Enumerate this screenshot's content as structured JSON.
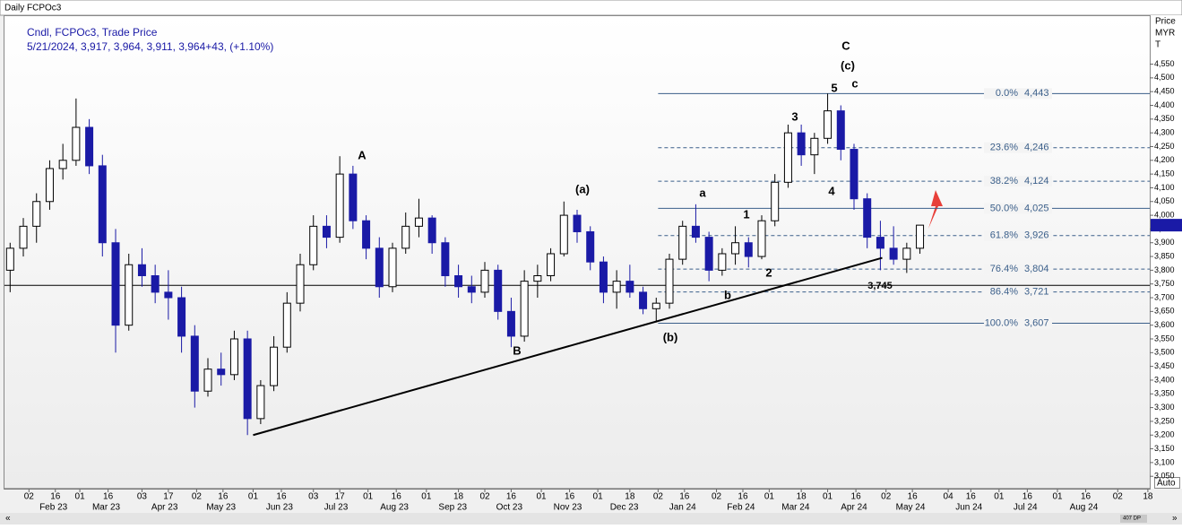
{
  "window_title": "Daily FCPOc3",
  "chart_data": {
    "type": "candlestick",
    "legend_lines": [
      "Cndl, FCPOc3, Trade Price",
      "5/21/2024, 3,917, 3,964, 3,911, 3,964+43, (+1.10%)"
    ],
    "y_axis_label": [
      "Price",
      "MYR",
      "T"
    ],
    "up_color": "#000000",
    "down_color": "#1a1aa6",
    "x": [
      "2023-01-23",
      "2023-01-30",
      "2023-02-06",
      "2023-02-13",
      "2023-02-20",
      "2023-02-27",
      "2023-03-06",
      "2023-03-13",
      "2023-03-20",
      "2023-03-27",
      "2023-04-03",
      "2023-04-10",
      "2023-04-17",
      "2023-04-24",
      "2023-05-01",
      "2023-05-08",
      "2023-05-15",
      "2023-05-22",
      "2023-05-29",
      "2023-06-05",
      "2023-06-12",
      "2023-06-19",
      "2023-06-26",
      "2023-07-03",
      "2023-07-10",
      "2023-07-17",
      "2023-07-24",
      "2023-07-31",
      "2023-08-07",
      "2023-08-14",
      "2023-08-21",
      "2023-08-28",
      "2023-09-04",
      "2023-09-11",
      "2023-09-18",
      "2023-09-25",
      "2023-10-02",
      "2023-10-09",
      "2023-10-16",
      "2023-10-23",
      "2023-10-30",
      "2023-11-06",
      "2023-11-13",
      "2023-11-20",
      "2023-11-27",
      "2023-12-04",
      "2023-12-11",
      "2023-12-18",
      "2023-12-25",
      "2024-01-01",
      "2024-01-08",
      "2024-01-15",
      "2024-01-22",
      "2024-01-29",
      "2024-02-05",
      "2024-02-12",
      "2024-02-19",
      "2024-02-26",
      "2024-03-04",
      "2024-03-11",
      "2024-03-18",
      "2024-03-25",
      "2024-04-01",
      "2024-04-08",
      "2024-04-15",
      "2024-04-22",
      "2024-04-29",
      "2024-05-06",
      "2024-05-13",
      "2024-05-20"
    ],
    "open": [
      3800,
      3880,
      3960,
      4050,
      4170,
      4200,
      4320,
      4180,
      3900,
      3600,
      3820,
      3780,
      3720,
      3700,
      3560,
      3360,
      3440,
      3420,
      3550,
      3260,
      3380,
      3520,
      3680,
      3820,
      3960,
      3920,
      4150,
      3980,
      3880,
      3740,
      3880,
      3960,
      3990,
      3900,
      3780,
      3740,
      3720,
      3800,
      3650,
      3560,
      3760,
      3780,
      3860,
      4000,
      3940,
      3830,
      3720,
      3760,
      3720,
      3660,
      3680,
      3840,
      3960,
      3920,
      3800,
      3860,
      3900,
      3850,
      3980,
      4120,
      4300,
      4220,
      4280,
      4380,
      4240,
      4060,
      3920,
      3880,
      3840,
      3880
    ],
    "high": [
      3900,
      3990,
      4080,
      4200,
      4260,
      4425,
      4350,
      4220,
      3950,
      3860,
      3880,
      3820,
      3800,
      3740,
      3600,
      3480,
      3500,
      3580,
      3580,
      3400,
      3560,
      3720,
      3860,
      4000,
      4000,
      4215,
      4180,
      4000,
      3920,
      3900,
      4010,
      4060,
      4000,
      3920,
      3820,
      3780,
      3830,
      3820,
      3700,
      3800,
      3820,
      3880,
      4050,
      4020,
      3960,
      3850,
      3800,
      3820,
      3740,
      3700,
      3860,
      3980,
      4040,
      3940,
      3880,
      3960,
      3920,
      4000,
      4150,
      4330,
      4330,
      4300,
      4443,
      4400,
      4260,
      4080,
      3980,
      3960,
      3900,
      3964
    ],
    "low": [
      3720,
      3850,
      3900,
      4020,
      4130,
      4180,
      4150,
      3850,
      3500,
      3580,
      3740,
      3680,
      3620,
      3500,
      3300,
      3340,
      3380,
      3400,
      3200,
      3240,
      3360,
      3500,
      3650,
      3800,
      3880,
      3900,
      3950,
      3840,
      3700,
      3720,
      3860,
      3920,
      3860,
      3740,
      3700,
      3680,
      3700,
      3620,
      3520,
      3540,
      3700,
      3760,
      3850,
      3900,
      3800,
      3680,
      3660,
      3700,
      3640,
      3610,
      3660,
      3820,
      3900,
      3760,
      3780,
      3820,
      3810,
      3840,
      3960,
      4100,
      4180,
      4150,
      4260,
      4200,
      4020,
      3880,
      3800,
      3820,
      3790,
      3860
    ],
    "close": [
      3880,
      3960,
      4050,
      4170,
      4200,
      4320,
      4180,
      3900,
      3600,
      3820,
      3780,
      3720,
      3700,
      3560,
      3360,
      3440,
      3420,
      3550,
      3260,
      3380,
      3520,
      3680,
      3820,
      3960,
      3920,
      4150,
      3980,
      3880,
      3740,
      3880,
      3960,
      3990,
      3900,
      3780,
      3740,
      3720,
      3800,
      3650,
      3560,
      3760,
      3780,
      3860,
      4000,
      3940,
      3830,
      3720,
      3760,
      3720,
      3660,
      3680,
      3840,
      3960,
      3920,
      3800,
      3860,
      3900,
      3850,
      3980,
      4120,
      4300,
      4220,
      4280,
      4380,
      4240,
      4060,
      3920,
      3880,
      3840,
      3880,
      3964
    ],
    "xlim": [
      "2023-01-20",
      "2024-09-19"
    ],
    "ylim": [
      3005,
      4728
    ],
    "yticks": [
      {
        "value": 3050,
        "label": "3,050"
      },
      {
        "value": 3100,
        "label": "3,100"
      },
      {
        "value": 3150,
        "label": "3,150"
      },
      {
        "value": 3200,
        "label": "3,200"
      },
      {
        "value": 3250,
        "label": "3,250"
      },
      {
        "value": 3300,
        "label": "3,300"
      },
      {
        "value": 3350,
        "label": "3,350"
      },
      {
        "value": 3400,
        "label": "3,400"
      },
      {
        "value": 3450,
        "label": "3,450"
      },
      {
        "value": 3500,
        "label": "3,500"
      },
      {
        "value": 3550,
        "label": "3,550"
      },
      {
        "value": 3600,
        "label": "3,600"
      },
      {
        "value": 3650,
        "label": "3,650"
      },
      {
        "value": 3700,
        "label": "3,700"
      },
      {
        "value": 3750,
        "label": "3,750"
      },
      {
        "value": 3800,
        "label": "3,800"
      },
      {
        "value": 3850,
        "label": "3,850"
      },
      {
        "value": 3900,
        "label": "3,900"
      },
      {
        "value": 3950,
        "label": "3,950"
      },
      {
        "value": 4000,
        "label": "4,000"
      },
      {
        "value": 4050,
        "label": "4,050"
      },
      {
        "value": 4100,
        "label": "4,100"
      },
      {
        "value": 4150,
        "label": "4,150"
      },
      {
        "value": 4200,
        "label": "4,200"
      },
      {
        "value": 4250,
        "label": "4,250"
      },
      {
        "value": 4300,
        "label": "4,300"
      },
      {
        "value": 4350,
        "label": "4,350"
      },
      {
        "value": 4400,
        "label": "4,400"
      },
      {
        "value": 4450,
        "label": "4,450"
      },
      {
        "value": 4500,
        "label": "4,500"
      },
      {
        "value": 4550,
        "label": "4,550"
      }
    ],
    "xticks": [
      {
        "value": "2023-02-02",
        "label": "02"
      },
      {
        "value": "2023-02-16",
        "label": "16"
      },
      {
        "value": "2023-03-01",
        "label": "01"
      },
      {
        "value": "2023-03-16",
        "label": "16"
      },
      {
        "value": "2023-04-03",
        "label": "03"
      },
      {
        "value": "2023-04-17",
        "label": "17"
      },
      {
        "value": "2023-05-02",
        "label": "02"
      },
      {
        "value": "2023-05-16",
        "label": "16"
      },
      {
        "value": "2023-06-01",
        "label": "01"
      },
      {
        "value": "2023-06-16",
        "label": "16"
      },
      {
        "value": "2023-07-03",
        "label": "03"
      },
      {
        "value": "2023-07-17",
        "label": "17"
      },
      {
        "value": "2023-08-01",
        "label": "01"
      },
      {
        "value": "2023-08-16",
        "label": "16"
      },
      {
        "value": "2023-09-01",
        "label": "01"
      },
      {
        "value": "2023-09-18",
        "label": "18"
      },
      {
        "value": "2023-10-02",
        "label": "02"
      },
      {
        "value": "2023-10-16",
        "label": "16"
      },
      {
        "value": "2023-11-01",
        "label": "01"
      },
      {
        "value": "2023-11-16",
        "label": "16"
      },
      {
        "value": "2023-12-01",
        "label": "01"
      },
      {
        "value": "2023-12-18",
        "label": "18"
      },
      {
        "value": "2024-01-02",
        "label": "02"
      },
      {
        "value": "2024-01-16",
        "label": "16"
      },
      {
        "value": "2024-02-02",
        "label": "02"
      },
      {
        "value": "2024-02-16",
        "label": "16"
      },
      {
        "value": "2024-03-01",
        "label": "01"
      },
      {
        "value": "2024-03-18",
        "label": "18"
      },
      {
        "value": "2024-04-01",
        "label": "01"
      },
      {
        "value": "2024-04-16",
        "label": "16"
      },
      {
        "value": "2024-05-02",
        "label": "02"
      },
      {
        "value": "2024-05-16",
        "label": "16"
      },
      {
        "value": "2024-06-04",
        "label": "04"
      },
      {
        "value": "2024-06-16",
        "label": "16"
      },
      {
        "value": "2024-07-01",
        "label": "01"
      },
      {
        "value": "2024-07-16",
        "label": "16"
      },
      {
        "value": "2024-08-01",
        "label": "01"
      },
      {
        "value": "2024-08-16",
        "label": "16"
      },
      {
        "value": "2024-09-02",
        "label": "02"
      },
      {
        "value": "2024-09-18",
        "label": "18"
      }
    ],
    "month_labels": [
      {
        "value": "2023-02-15",
        "label": "Feb 23"
      },
      {
        "value": "2023-03-15",
        "label": "Mar 23"
      },
      {
        "value": "2023-04-15",
        "label": "Apr 23"
      },
      {
        "value": "2023-05-15",
        "label": "May 23"
      },
      {
        "value": "2023-06-15",
        "label": "Jun 23"
      },
      {
        "value": "2023-07-15",
        "label": "Jul 23"
      },
      {
        "value": "2023-08-15",
        "label": "Aug 23"
      },
      {
        "value": "2023-09-15",
        "label": "Sep 23"
      },
      {
        "value": "2023-10-15",
        "label": "Oct 23"
      },
      {
        "value": "2023-11-15",
        "label": "Nov 23"
      },
      {
        "value": "2023-12-15",
        "label": "Dec 23"
      },
      {
        "value": "2024-01-15",
        "label": "Jan 24"
      },
      {
        "value": "2024-02-15",
        "label": "Feb 24"
      },
      {
        "value": "2024-03-15",
        "label": "Mar 24"
      },
      {
        "value": "2024-04-15",
        "label": "Apr 24"
      },
      {
        "value": "2024-05-15",
        "label": "May 24"
      },
      {
        "value": "2024-06-15",
        "label": "Jun 24"
      },
      {
        "value": "2024-07-15",
        "label": "Jul 24"
      },
      {
        "value": "2024-08-15",
        "label": "Aug 24"
      }
    ],
    "fibonacci": {
      "color": "#3b5f8a",
      "start": "2024-01-02",
      "levels": [
        {
          "label": "0.0%",
          "value": 4443,
          "value_label": "4,443",
          "style": "solid"
        },
        {
          "label": "23.6%",
          "value": 4246,
          "value_label": "4,246",
          "style": "dashed"
        },
        {
          "label": "38.2%",
          "value": 4124,
          "value_label": "4,124",
          "style": "dashed"
        },
        {
          "label": "50.0%",
          "value": 4025,
          "value_label": "4,025",
          "style": "solid"
        },
        {
          "label": "61.8%",
          "value": 3926,
          "value_label": "3,926",
          "style": "dashed"
        },
        {
          "label": "76.4%",
          "value": 3804,
          "value_label": "3,804",
          "style": "dashed"
        },
        {
          "label": "86.4%",
          "value": 3721,
          "value_label": "3,721",
          "style": "dashed"
        },
        {
          "label": "100.0%",
          "value": 3607,
          "value_label": "3,607",
          "style": "solid"
        }
      ]
    },
    "hline": {
      "value": 3745,
      "label": "3,745"
    },
    "trendline": {
      "x": [
        "2023-06-01",
        "2024-04-30"
      ],
      "y": [
        3200,
        3845
      ]
    },
    "annotations": [
      "C",
      "(c)",
      "5",
      "c",
      "3",
      "4",
      "A",
      "(a)",
      "a",
      "1",
      "2",
      "b",
      "(b)",
      "B"
    ]
  },
  "ui": {
    "scroll_left": "«",
    "scroll_right": "»",
    "zoom": "407 DP",
    "auto_button": "Auto"
  }
}
